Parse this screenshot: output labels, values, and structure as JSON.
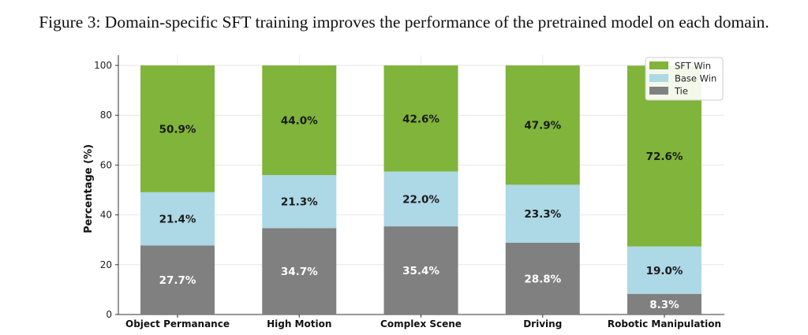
{
  "caption": "Figure 3: Domain-specific SFT training improves the performance of the pretrained model on each domain.",
  "chart_data": {
    "type": "bar",
    "stacked": true,
    "title": "",
    "xlabel": "",
    "ylabel": "Percentage (%)",
    "ylim": [
      0,
      100
    ],
    "yticks": [
      0,
      20,
      40,
      60,
      80,
      100
    ],
    "grid": true,
    "legend_position": "top-right",
    "categories": [
      "Object Permanance",
      "High Motion",
      "Complex Scene",
      "Driving",
      "Robotic Manipulation"
    ],
    "series": [
      {
        "name": "Tie",
        "color": "#808080",
        "label_color": "#ffffff",
        "values": [
          27.7,
          34.7,
          35.4,
          28.8,
          8.3
        ]
      },
      {
        "name": "Base Win",
        "color": "#add8e6",
        "label_color": "#1a1a1a",
        "values": [
          21.4,
          21.3,
          22.0,
          23.3,
          19.0
        ]
      },
      {
        "name": "SFT Win",
        "color": "#80b43a",
        "label_color": "#1a1a1a",
        "values": [
          50.9,
          44.0,
          42.6,
          47.9,
          72.6
        ]
      }
    ],
    "legend_order": [
      "SFT Win",
      "Base Win",
      "Tie"
    ],
    "value_format_suffix": "%"
  }
}
